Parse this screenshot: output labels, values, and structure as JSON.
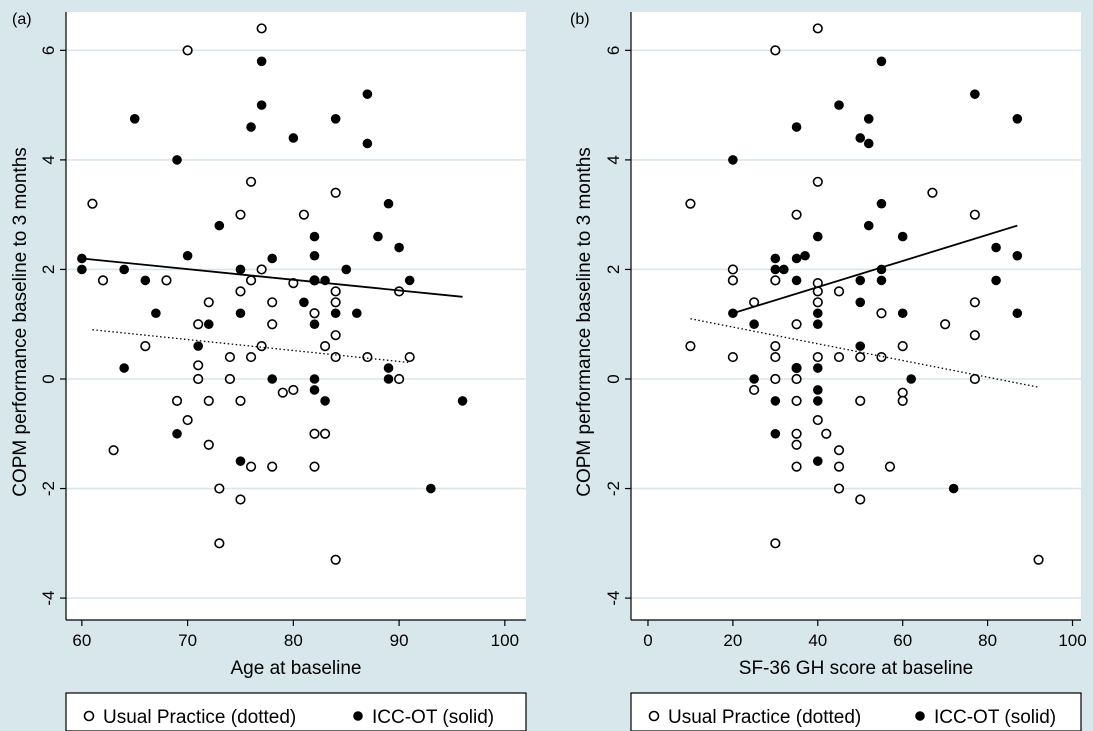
{
  "chart_data": [
    {
      "type": "scatter",
      "panel_label": "(a)",
      "xlabel": "Age at baseline",
      "ylabel": "COPM performance baseline to 3 months",
      "xlim": [
        58.5,
        102
      ],
      "ylim": [
        -4.4,
        6.7
      ],
      "xticks": [
        60,
        70,
        80,
        90,
        100
      ],
      "yticks": [
        -4,
        -2,
        0,
        2,
        4,
        6
      ],
      "grid": true,
      "legend_position": "bottom",
      "series": [
        {
          "name": "Usual Practice (dotted)",
          "marker": "hollow-circle",
          "points": [
            [
              61,
              3.2
            ],
            [
              62,
              1.8
            ],
            [
              63,
              -1.3
            ],
            [
              66,
              0.6
            ],
            [
              68,
              1.8
            ],
            [
              69,
              -0.4
            ],
            [
              70,
              6
            ],
            [
              70,
              -0.75
            ],
            [
              71,
              0.25
            ],
            [
              71,
              0
            ],
            [
              71,
              1
            ],
            [
              72,
              1.4
            ],
            [
              72,
              -0.4
            ],
            [
              72,
              -1.2
            ],
            [
              73,
              -2
            ],
            [
              73,
              -3
            ],
            [
              74,
              0.4
            ],
            [
              74,
              0
            ],
            [
              75,
              3
            ],
            [
              75,
              1.6
            ],
            [
              75,
              -0.4
            ],
            [
              75,
              -2.2
            ],
            [
              76,
              3.6
            ],
            [
              76,
              1.8
            ],
            [
              76,
              0.4
            ],
            [
              76,
              -1.6
            ],
            [
              77,
              6.4
            ],
            [
              77,
              2
            ],
            [
              77,
              0.6
            ],
            [
              78,
              1.4
            ],
            [
              78,
              1
            ],
            [
              78,
              -1.6
            ],
            [
              79,
              -0.25
            ],
            [
              80,
              -0.2
            ],
            [
              80,
              1.75
            ],
            [
              81,
              3
            ],
            [
              82,
              1.2
            ],
            [
              82,
              1.8
            ],
            [
              82,
              -1
            ],
            [
              82,
              -1.6
            ],
            [
              83,
              -1
            ],
            [
              83,
              0.6
            ],
            [
              84,
              3.4
            ],
            [
              84,
              1.6
            ],
            [
              84,
              1.4
            ],
            [
              84,
              0.8
            ],
            [
              84,
              0.4
            ],
            [
              84,
              -3.3
            ],
            [
              87,
              0.4
            ],
            [
              90,
              1.6
            ],
            [
              90,
              0
            ],
            [
              91,
              0.4
            ]
          ]
        },
        {
          "name": "ICC-OT (solid)",
          "marker": "filled-circle",
          "points": [
            [
              60,
              2.2
            ],
            [
              60,
              2
            ],
            [
              64,
              2
            ],
            [
              64,
              0.2
            ],
            [
              65,
              4.75
            ],
            [
              66,
              1.8
            ],
            [
              67,
              1.2
            ],
            [
              69,
              4
            ],
            [
              69,
              -1
            ],
            [
              70,
              2.25
            ],
            [
              71,
              0.6
            ],
            [
              72,
              1
            ],
            [
              73,
              2.8
            ],
            [
              75,
              2
            ],
            [
              75,
              1.2
            ],
            [
              75,
              -1.5
            ],
            [
              76,
              4.6
            ],
            [
              77,
              5.8
            ],
            [
              77,
              5
            ],
            [
              78,
              2.2
            ],
            [
              78,
              0
            ],
            [
              80,
              4.4
            ],
            [
              81,
              1.4
            ],
            [
              82,
              2.6
            ],
            [
              82,
              2.25
            ],
            [
              82,
              1.8
            ],
            [
              82,
              1
            ],
            [
              82,
              0
            ],
            [
              82,
              -0.2
            ],
            [
              83,
              1.8
            ],
            [
              83,
              -0.4
            ],
            [
              84,
              4.75
            ],
            [
              84,
              1.2
            ],
            [
              85,
              2
            ],
            [
              86,
              1.2
            ],
            [
              87,
              5.2
            ],
            [
              87,
              4.3
            ],
            [
              88,
              2.6
            ],
            [
              89,
              3.2
            ],
            [
              89,
              0.2
            ],
            [
              89,
              0
            ],
            [
              90,
              2.4
            ],
            [
              91,
              1.8
            ],
            [
              93,
              -2
            ],
            [
              96,
              -0.4
            ]
          ]
        }
      ],
      "fit_lines": [
        {
          "series": "Usual Practice (dotted)",
          "style": "dotted",
          "x": [
            61,
            91
          ],
          "y": [
            0.9,
            0.3
          ]
        },
        {
          "series": "ICC-OT (solid)",
          "style": "solid",
          "x": [
            60,
            96
          ],
          "y": [
            2.2,
            1.5
          ]
        }
      ]
    },
    {
      "type": "scatter",
      "panel_label": "(b)",
      "xlabel": "SF-36 GH score at baseline",
      "ylabel": "COPM performance baseline to 3 months",
      "xlim": [
        -4,
        102
      ],
      "ylim": [
        -4.4,
        6.7
      ],
      "xticks": [
        0,
        20,
        40,
        60,
        80,
        100
      ],
      "yticks": [
        -4,
        -2,
        0,
        2,
        4,
        6
      ],
      "grid": true,
      "legend_position": "bottom",
      "series": [
        {
          "name": "Usual Practice (dotted)",
          "marker": "hollow-circle",
          "points": [
            [
              10,
              3.2
            ],
            [
              10,
              0.6
            ],
            [
              20,
              2
            ],
            [
              20,
              1.8
            ],
            [
              20,
              0.4
            ],
            [
              25,
              1.4
            ],
            [
              25,
              -0.2
            ],
            [
              30,
              6
            ],
            [
              30,
              1.8
            ],
            [
              30,
              0.6
            ],
            [
              30,
              0.4
            ],
            [
              30,
              0
            ],
            [
              30,
              -3
            ],
            [
              35,
              3
            ],
            [
              35,
              1
            ],
            [
              35,
              0.2
            ],
            [
              35,
              0
            ],
            [
              35,
              -0.4
            ],
            [
              35,
              -1
            ],
            [
              35,
              -1.2
            ],
            [
              35,
              -1.6
            ],
            [
              40,
              6.4
            ],
            [
              40,
              3.6
            ],
            [
              40,
              1.75
            ],
            [
              40,
              1.6
            ],
            [
              40,
              1.4
            ],
            [
              40,
              0.4
            ],
            [
              40,
              -0.75
            ],
            [
              42,
              -1
            ],
            [
              45,
              1.6
            ],
            [
              45,
              0.4
            ],
            [
              45,
              -1.3
            ],
            [
              45,
              -1.6
            ],
            [
              45,
              -2
            ],
            [
              50,
              0.4
            ],
            [
              50,
              -0.4
            ],
            [
              50,
              -2.2
            ],
            [
              55,
              1.2
            ],
            [
              55,
              0.4
            ],
            [
              57,
              -1.6
            ],
            [
              60,
              0.6
            ],
            [
              60,
              -0.25
            ],
            [
              60,
              -0.4
            ],
            [
              67,
              3.4
            ],
            [
              70,
              1
            ],
            [
              77,
              3
            ],
            [
              77,
              1.4
            ],
            [
              77,
              0.8
            ],
            [
              77,
              0
            ],
            [
              92,
              -3.3
            ]
          ]
        },
        {
          "name": "ICC-OT (solid)",
          "marker": "filled-circle",
          "points": [
            [
              20,
              4
            ],
            [
              20,
              1.2
            ],
            [
              25,
              1
            ],
            [
              25,
              0
            ],
            [
              30,
              2.2
            ],
            [
              30,
              2
            ],
            [
              30,
              -0.4
            ],
            [
              30,
              -1
            ],
            [
              32,
              2
            ],
            [
              35,
              4.6
            ],
            [
              35,
              2.2
            ],
            [
              35,
              1.8
            ],
            [
              35,
              0.2
            ],
            [
              37,
              2.25
            ],
            [
              40,
              2.6
            ],
            [
              40,
              1.2
            ],
            [
              40,
              1
            ],
            [
              40,
              0.2
            ],
            [
              40,
              -0.2
            ],
            [
              40,
              -0.4
            ],
            [
              40,
              -1.5
            ],
            [
              45,
              5
            ],
            [
              50,
              4.4
            ],
            [
              50,
              1.8
            ],
            [
              50,
              1.4
            ],
            [
              50,
              0.6
            ],
            [
              52,
              4.75
            ],
            [
              52,
              4.3
            ],
            [
              52,
              2.8
            ],
            [
              55,
              5.8
            ],
            [
              55,
              3.2
            ],
            [
              55,
              2
            ],
            [
              55,
              1.8
            ],
            [
              60,
              2.6
            ],
            [
              60,
              1.2
            ],
            [
              62,
              0
            ],
            [
              72,
              -2
            ],
            [
              77,
              5.2
            ],
            [
              82,
              2.4
            ],
            [
              82,
              1.8
            ],
            [
              87,
              4.75
            ],
            [
              87,
              2.25
            ],
            [
              87,
              1.2
            ]
          ]
        }
      ],
      "fit_lines": [
        {
          "series": "Usual Practice (dotted)",
          "style": "dotted",
          "x": [
            10,
            92
          ],
          "y": [
            1.1,
            -0.15
          ]
        },
        {
          "series": "ICC-OT (solid)",
          "style": "solid",
          "x": [
            20,
            87
          ],
          "y": [
            1.2,
            2.8
          ]
        }
      ]
    }
  ]
}
